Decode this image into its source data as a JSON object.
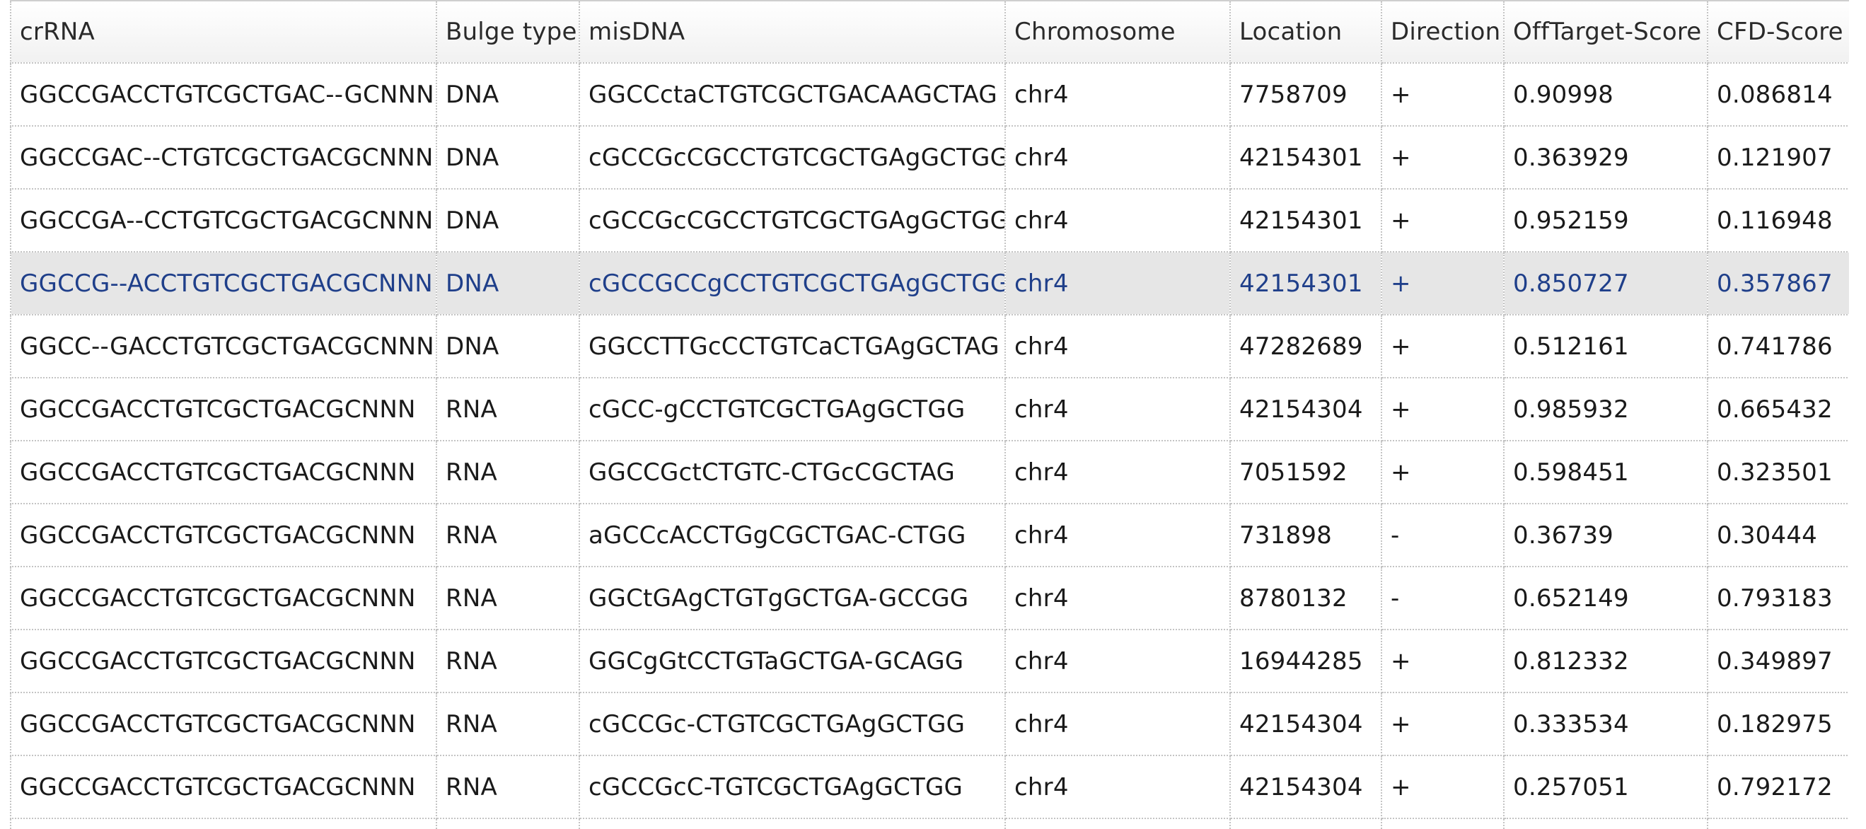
{
  "table": {
    "columns": [
      "crRNA",
      "Bulge type",
      "misDNA",
      "Chromosome",
      "Location",
      "Direction",
      "OffTarget-Score",
      "CFD-Score"
    ],
    "selected_row_index": 3,
    "colors": {
      "selected_row_background": "#e6e6e6",
      "selected_row_text": "#1f3f8a"
    },
    "rows": [
      {
        "crRNA": "GGCCGACCTGTCGCTGAC--GCNNN",
        "bulge": "DNA",
        "misDNA": "GGCCctaCTGTCGCTGACAAGCTAG",
        "chromosome": "chr4",
        "location": "7758709",
        "direction": "+",
        "offtarget": "0.90998",
        "cfd": "0.086814"
      },
      {
        "crRNA": "GGCCGAC--CTGTCGCTGACGCNNN",
        "bulge": "DNA",
        "misDNA": "cGCCGcCGCCTGTCGCTGAgGCTGG",
        "chromosome": "chr4",
        "location": "42154301",
        "direction": "+",
        "offtarget": "0.363929",
        "cfd": "0.121907"
      },
      {
        "crRNA": "GGCCGA--CCTGTCGCTGACGCNNN",
        "bulge": "DNA",
        "misDNA": "cGCCGcCGCCTGTCGCTGAgGCTGG",
        "chromosome": "chr4",
        "location": "42154301",
        "direction": "+",
        "offtarget": "0.952159",
        "cfd": "0.116948"
      },
      {
        "crRNA": "GGCCG--ACCTGTCGCTGACGCNNN",
        "bulge": "DNA",
        "misDNA": "cGCCGCCgCCTGTCGCTGAgGCTGG",
        "chromosome": "chr4",
        "location": "42154301",
        "direction": "+",
        "offtarget": "0.850727",
        "cfd": "0.357867"
      },
      {
        "crRNA": "GGCC--GACCTGTCGCTGACGCNNN",
        "bulge": "DNA",
        "misDNA": "GGCCTTGcCCTGTCaCTGAgGCTAG",
        "chromosome": "chr4",
        "location": "47282689",
        "direction": "+",
        "offtarget": "0.512161",
        "cfd": "0.741786"
      },
      {
        "crRNA": "GGCCGACCTGTCGCTGACGCNNN",
        "bulge": "RNA",
        "misDNA": "cGCC-gCCTGTCGCTGAgGCTGG",
        "chromosome": "chr4",
        "location": "42154304",
        "direction": "+",
        "offtarget": "0.985932",
        "cfd": "0.665432"
      },
      {
        "crRNA": "GGCCGACCTGTCGCTGACGCNNN",
        "bulge": "RNA",
        "misDNA": "GGCCGctCTGTC-CTGcCGCTAG",
        "chromosome": "chr4",
        "location": "7051592",
        "direction": "+",
        "offtarget": "0.598451",
        "cfd": "0.323501"
      },
      {
        "crRNA": "GGCCGACCTGTCGCTGACGCNNN",
        "bulge": "RNA",
        "misDNA": "aGCCcACCTGgCGCTGAC-CTGG",
        "chromosome": "chr4",
        "location": "731898",
        "direction": "-",
        "offtarget": "0.36739",
        "cfd": "0.30444"
      },
      {
        "crRNA": "GGCCGACCTGTCGCTGACGCNNN",
        "bulge": "RNA",
        "misDNA": "GGCtGAgCTGTgGCTGA-GCCGG",
        "chromosome": "chr4",
        "location": "8780132",
        "direction": "-",
        "offtarget": "0.652149",
        "cfd": "0.793183"
      },
      {
        "crRNA": "GGCCGACCTGTCGCTGACGCNNN",
        "bulge": "RNA",
        "misDNA": "GGCgGtCCTGTaGCTGA-GCAGG",
        "chromosome": "chr4",
        "location": "16944285",
        "direction": "+",
        "offtarget": "0.812332",
        "cfd": "0.349897"
      },
      {
        "crRNA": "GGCCGACCTGTCGCTGACGCNNN",
        "bulge": "RNA",
        "misDNA": "cGCCGc-CTGTCGCTGAgGCTGG",
        "chromosome": "chr4",
        "location": "42154304",
        "direction": "+",
        "offtarget": "0.333534",
        "cfd": "0.182975"
      },
      {
        "crRNA": "GGCCGACCTGTCGCTGACGCNNN",
        "bulge": "RNA",
        "misDNA": "cGCCGcC-TGTCGCTGAgGCTGG",
        "chromosome": "chr4",
        "location": "42154304",
        "direction": "+",
        "offtarget": "0.257051",
        "cfd": "0.792172"
      }
    ]
  }
}
